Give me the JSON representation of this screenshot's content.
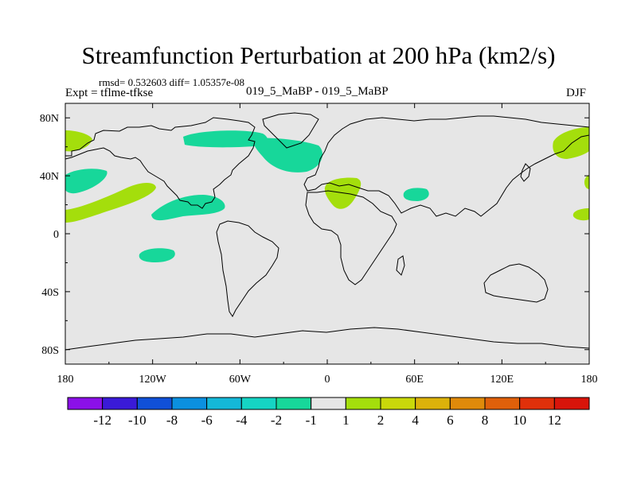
{
  "title": "Streamfunction Perturbation at 200 hPa (km2/s)",
  "stats": "rmsd= 0.532603 diff= 1.05357e-08",
  "expt": "Expt = tflme-tfkse",
  "experiments": "019_5_MaBP - 019_5_MaBP",
  "season": "DJF",
  "colors": {
    "background": "#ffffff",
    "ocean_fill": "#e6e6e6",
    "coast": "#000000",
    "negative_fill": "#17d79a",
    "positive_fill": "#a4de0c"
  },
  "chart_data": {
    "type": "heatmap",
    "x_axis": {
      "range": [
        -180,
        180
      ],
      "ticks": [
        -180,
        -120,
        -60,
        0,
        60,
        120,
        180
      ],
      "tick_labels": [
        "180",
        "120W",
        "60W",
        "0",
        "60E",
        "120E",
        "180"
      ]
    },
    "y_axis": {
      "range": [
        -90,
        90
      ],
      "ticks": [
        80,
        40,
        0,
        -40,
        -80
      ],
      "tick_labels": [
        "80N",
        "40N",
        "0",
        "40S",
        "80S"
      ]
    },
    "colorbar": {
      "levels": [
        "-12",
        "-10",
        "-8",
        "-6",
        "-4",
        "-2",
        "-1",
        "1",
        "2",
        "4",
        "6",
        "8",
        "10",
        "12"
      ],
      "colors": [
        "#8b10e8",
        "#3a1ad8",
        "#1050d8",
        "#0b90e0",
        "#14b8d8",
        "#15d4c4",
        "#17d79a",
        "#e6e6e6",
        "#a4de0c",
        "#c9d80a",
        "#dcb20a",
        "#e08a0a",
        "#e0600a",
        "#e0300a",
        "#d8140a"
      ]
    },
    "anomalies": [
      {
        "sign": "positive",
        "lon": -174,
        "lat": 65
      },
      {
        "sign": "negative",
        "lon": -174,
        "lat": 40
      },
      {
        "sign": "positive",
        "lon": -160,
        "lat": 22
      },
      {
        "sign": "negative",
        "lon": -72,
        "lat": 67
      },
      {
        "sign": "negative",
        "lon": -22,
        "lat": 58
      },
      {
        "sign": "negative",
        "lon": -97,
        "lat": 18
      },
      {
        "sign": "negative",
        "lon": -121,
        "lat": -14
      },
      {
        "sign": "positive",
        "lon": 11,
        "lat": 30
      },
      {
        "sign": "negative",
        "lon": 61,
        "lat": 28
      },
      {
        "sign": "positive",
        "lon": 173,
        "lat": 62
      },
      {
        "sign": "positive",
        "lon": 178,
        "lat": 36
      },
      {
        "sign": "positive",
        "lon": 177,
        "lat": 14
      }
    ]
  }
}
